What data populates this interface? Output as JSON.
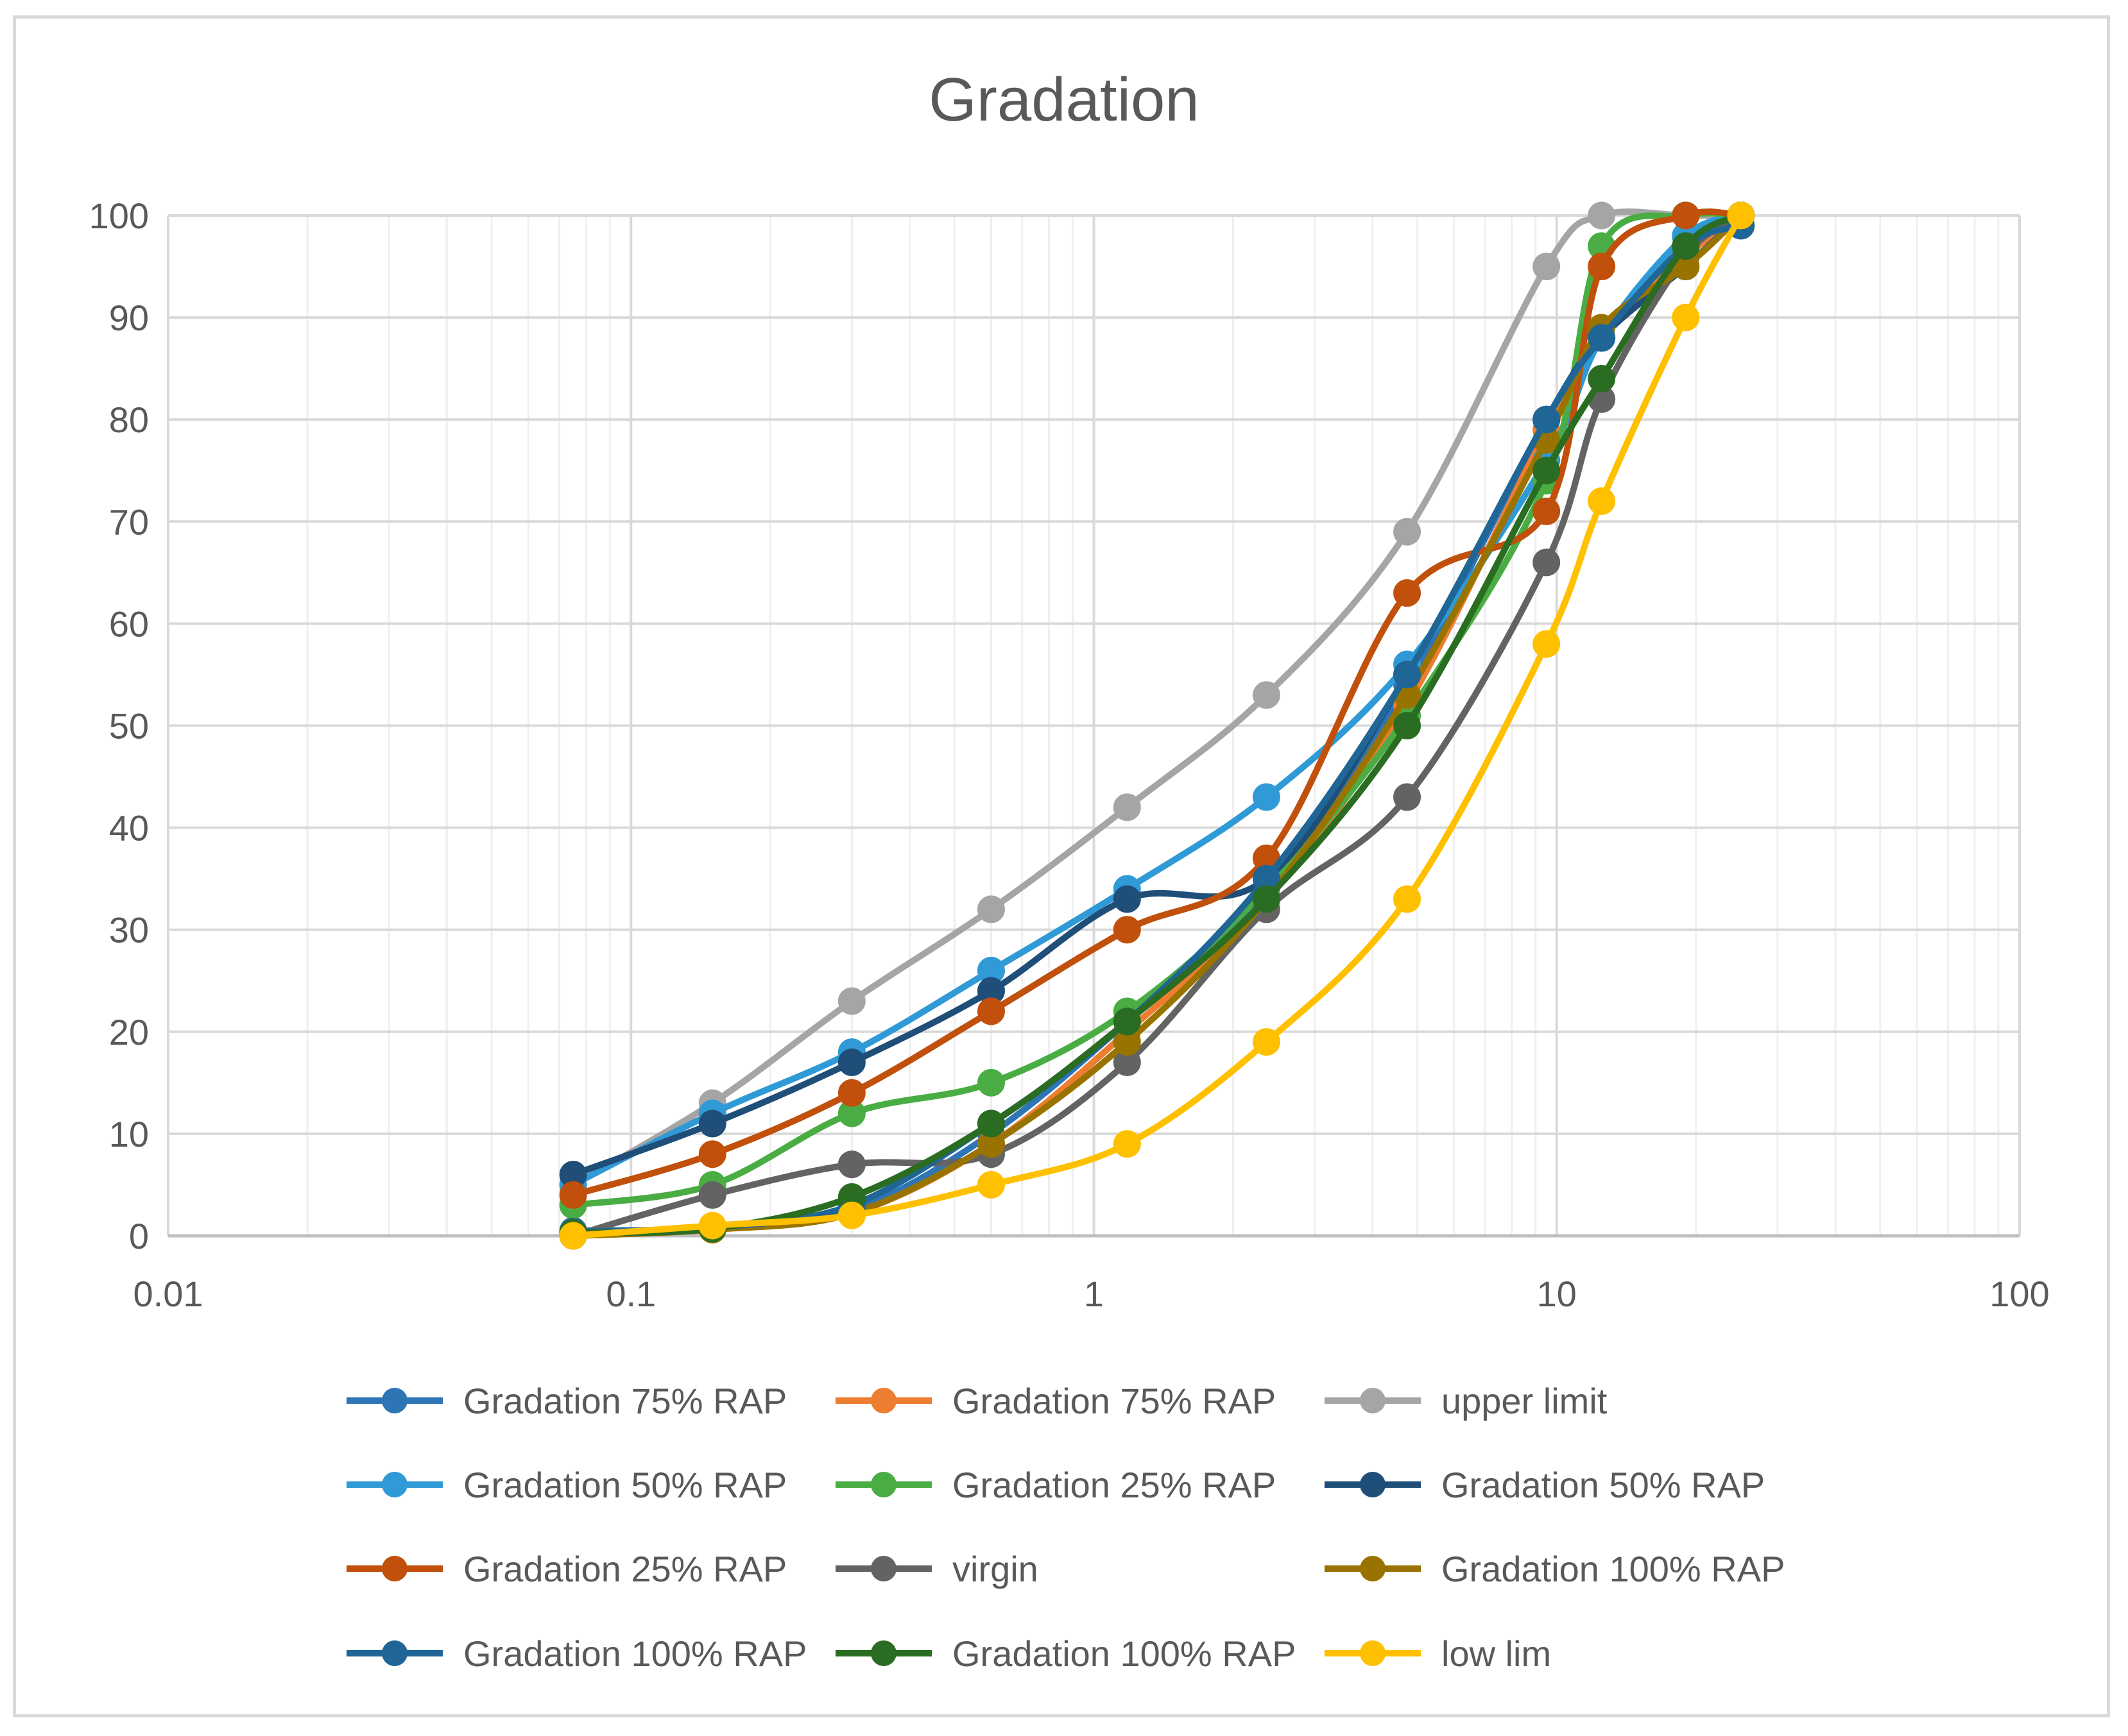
{
  "chart_data": {
    "type": "line",
    "title": "Gradation",
    "xscale": "log",
    "xlim": [
      0.01,
      100
    ],
    "ylim": [
      0,
      100
    ],
    "x_ticks": [
      "0.01",
      "0.1",
      "1",
      "10",
      "100"
    ],
    "y_ticks": [
      "0",
      "10",
      "20",
      "30",
      "40",
      "50",
      "60",
      "70",
      "80",
      "90",
      "100"
    ],
    "x_tick_values": [
      0.01,
      0.1,
      1,
      10,
      100
    ],
    "y_tick_values": [
      0,
      10,
      20,
      30,
      40,
      50,
      60,
      70,
      80,
      90,
      100
    ],
    "grid": true,
    "legend_position": "bottom",
    "sieve_sizes": [
      0.075,
      0.15,
      0.3,
      0.6,
      1.18,
      2.36,
      4.75,
      9.5,
      12.5,
      19,
      25
    ],
    "series": [
      {
        "name": "Gradation 75% RAP",
        "color": "#2e75b6",
        "values": [
          0.5,
          0.8,
          2.5,
          10,
          21,
          34,
          54,
          80,
          88,
          98,
          99
        ]
      },
      {
        "name": "Gradation 75% RAP",
        "color": "#ed7d31",
        "values": [
          0.3,
          0.7,
          2.2,
          9,
          20,
          33,
          52,
          79,
          88,
          96,
          100
        ]
      },
      {
        "name": "upper limit",
        "color": "#a5a5a5",
        "values": [
          5,
          13,
          23,
          32,
          42,
          53,
          69,
          95,
          100,
          100,
          100
        ]
      },
      {
        "name": "Gradation 50% RAP",
        "color": "#2f9ad6",
        "values": [
          5,
          12,
          18,
          26,
          34,
          43,
          56,
          76,
          88,
          98,
          100
        ]
      },
      {
        "name": "Gradation 25% RAP",
        "color": "#4aad43",
        "values": [
          3,
          5,
          12,
          15,
          22,
          34,
          51,
          74,
          97,
          100,
          100
        ]
      },
      {
        "name": "Gradation 50% RAP",
        "color": "#1f4e79",
        "values": [
          6,
          11,
          17,
          24,
          33,
          35,
          55,
          80,
          88,
          95,
          100
        ]
      },
      {
        "name": "Gradation 25% RAP",
        "color": "#c0500b",
        "values": [
          4,
          8,
          14,
          22,
          30,
          37,
          63,
          71,
          95,
          100,
          100
        ]
      },
      {
        "name": "virgin",
        "color": "#636363",
        "values": [
          0,
          4,
          7,
          8,
          17,
          32,
          43,
          66,
          82,
          96,
          100
        ]
      },
      {
        "name": "Gradation 100% RAP",
        "color": "#997300",
        "values": [
          0,
          0.6,
          2.2,
          9,
          19,
          33,
          53,
          78,
          89,
          95,
          100
        ]
      },
      {
        "name": "Gradation 100% RAP",
        "color": "#1f6696",
        "values": [
          0.4,
          0.8,
          3,
          11,
          21,
          35,
          55,
          80,
          88,
          97,
          99
        ]
      },
      {
        "name": "Gradation 100% RAP",
        "color": "#2a6d22",
        "values": [
          0.3,
          0.7,
          3.8,
          11,
          21,
          33,
          50,
          75,
          84,
          97,
          100
        ]
      },
      {
        "name": "low lim",
        "color": "#ffc000",
        "values": [
          0,
          1,
          2,
          5,
          9,
          19,
          33,
          58,
          72,
          90,
          100
        ]
      }
    ]
  }
}
